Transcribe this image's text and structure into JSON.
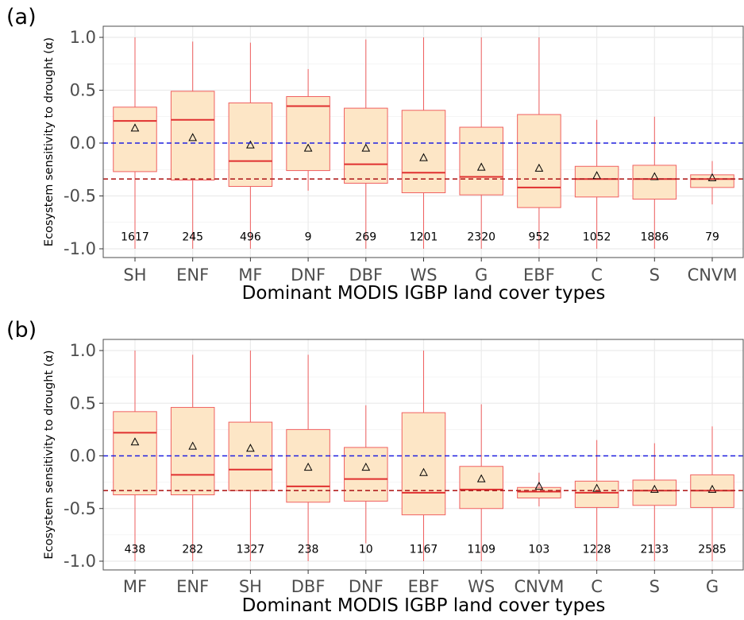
{
  "chart_data": [
    {
      "type": "box",
      "panel_label": "(a)",
      "xlabel": "Dominant MODIS IGBP land cover types",
      "ylabel": "Ecosystem sensitivity to drought (α)",
      "ylim": [
        -1.05,
        1.05
      ],
      "yticks": [
        "1.0",
        "0.5",
        "0.0",
        "-0.5",
        "-1.0"
      ],
      "grid": true,
      "reference_lines": [
        {
          "y": 0.0,
          "style": "dashed",
          "color": "#2020e0"
        },
        {
          "y": -0.34,
          "style": "dashed",
          "color": "#b22222"
        }
      ],
      "categories": [
        "SH",
        "ENF",
        "MF",
        "DNF",
        "DBF",
        "WS",
        "G",
        "EBF",
        "C",
        "S",
        "CNVM"
      ],
      "boxes": [
        {
          "whisker_low": -1.0,
          "q1": -0.27,
          "median": 0.21,
          "q3": 0.34,
          "whisker_high": 1.0,
          "mean": 0.14,
          "n": "1617"
        },
        {
          "whisker_low": -1.0,
          "q1": -0.35,
          "median": 0.22,
          "q3": 0.49,
          "whisker_high": 0.96,
          "mean": 0.05,
          "n": "245"
        },
        {
          "whisker_low": -1.0,
          "q1": -0.41,
          "median": -0.17,
          "q3": 0.38,
          "whisker_high": 0.95,
          "mean": -0.02,
          "n": "496"
        },
        {
          "whisker_low": -0.45,
          "q1": -0.26,
          "median": 0.35,
          "q3": 0.44,
          "whisker_high": 0.7,
          "mean": -0.05,
          "n": "9"
        },
        {
          "whisker_low": -1.0,
          "q1": -0.38,
          "median": -0.2,
          "q3": 0.33,
          "whisker_high": 0.98,
          "mean": -0.05,
          "n": "269"
        },
        {
          "whisker_low": -1.0,
          "q1": -0.47,
          "median": -0.28,
          "q3": 0.31,
          "whisker_high": 1.0,
          "mean": -0.14,
          "n": "1201"
        },
        {
          "whisker_low": -1.0,
          "q1": -0.49,
          "median": -0.32,
          "q3": 0.15,
          "whisker_high": 1.0,
          "mean": -0.23,
          "n": "2320"
        },
        {
          "whisker_low": -1.0,
          "q1": -0.61,
          "median": -0.42,
          "q3": 0.27,
          "whisker_high": 1.0,
          "mean": -0.24,
          "n": "952"
        },
        {
          "whisker_low": -1.0,
          "q1": -0.51,
          "median": -0.34,
          "q3": -0.22,
          "whisker_high": 0.22,
          "mean": -0.31,
          "n": "1052"
        },
        {
          "whisker_low": -1.0,
          "q1": -0.53,
          "median": -0.34,
          "q3": -0.21,
          "whisker_high": 0.25,
          "mean": -0.32,
          "n": "1886"
        },
        {
          "whisker_low": -0.58,
          "q1": -0.42,
          "median": -0.34,
          "q3": -0.3,
          "whisker_high": -0.17,
          "mean": -0.33,
          "n": "79"
        }
      ]
    },
    {
      "type": "box",
      "panel_label": "(b)",
      "xlabel": "Dominant MODIS IGBP land cover types",
      "ylabel": "Ecosystem sensitivity to drought (α)",
      "ylim": [
        -1.05,
        1.05
      ],
      "yticks": [
        "1.0",
        "0.5",
        "0.0",
        "-0.5",
        "-1.0"
      ],
      "grid": true,
      "reference_lines": [
        {
          "y": 0.0,
          "style": "dashed",
          "color": "#2020e0"
        },
        {
          "y": -0.33,
          "style": "dashed",
          "color": "#b22222"
        }
      ],
      "categories": [
        "MF",
        "ENF",
        "SH",
        "DBF",
        "DNF",
        "EBF",
        "WS",
        "CNVM",
        "C",
        "S",
        "G"
      ],
      "boxes": [
        {
          "whisker_low": -1.0,
          "q1": -0.37,
          "median": 0.22,
          "q3": 0.42,
          "whisker_high": 1.0,
          "mean": 0.13,
          "n": "438"
        },
        {
          "whisker_low": -1.0,
          "q1": -0.37,
          "median": -0.18,
          "q3": 0.46,
          "whisker_high": 0.96,
          "mean": 0.09,
          "n": "282"
        },
        {
          "whisker_low": -1.0,
          "q1": -0.33,
          "median": -0.13,
          "q3": 0.32,
          "whisker_high": 1.0,
          "mean": 0.07,
          "n": "1327"
        },
        {
          "whisker_low": -1.0,
          "q1": -0.44,
          "median": -0.29,
          "q3": 0.25,
          "whisker_high": 0.96,
          "mean": -0.11,
          "n": "238"
        },
        {
          "whisker_low": -0.83,
          "q1": -0.43,
          "median": -0.22,
          "q3": 0.08,
          "whisker_high": 0.48,
          "mean": -0.11,
          "n": "10"
        },
        {
          "whisker_low": -1.0,
          "q1": -0.56,
          "median": -0.35,
          "q3": 0.41,
          "whisker_high": 1.0,
          "mean": -0.16,
          "n": "1167"
        },
        {
          "whisker_low": -1.0,
          "q1": -0.5,
          "median": -0.32,
          "q3": -0.1,
          "whisker_high": 0.49,
          "mean": -0.22,
          "n": "1109"
        },
        {
          "whisker_low": -0.48,
          "q1": -0.4,
          "median": -0.34,
          "q3": -0.3,
          "whisker_high": -0.16,
          "mean": -0.29,
          "n": "103"
        },
        {
          "whisker_low": -1.0,
          "q1": -0.49,
          "median": -0.35,
          "q3": -0.24,
          "whisker_high": 0.15,
          "mean": -0.31,
          "n": "1228"
        },
        {
          "whisker_low": -1.0,
          "q1": -0.47,
          "median": -0.33,
          "q3": -0.23,
          "whisker_high": 0.12,
          "mean": -0.32,
          "n": "2133"
        },
        {
          "whisker_low": -1.0,
          "q1": -0.49,
          "median": -0.33,
          "q3": -0.18,
          "whisker_high": 0.28,
          "mean": -0.32,
          "n": "2585"
        }
      ]
    }
  ]
}
